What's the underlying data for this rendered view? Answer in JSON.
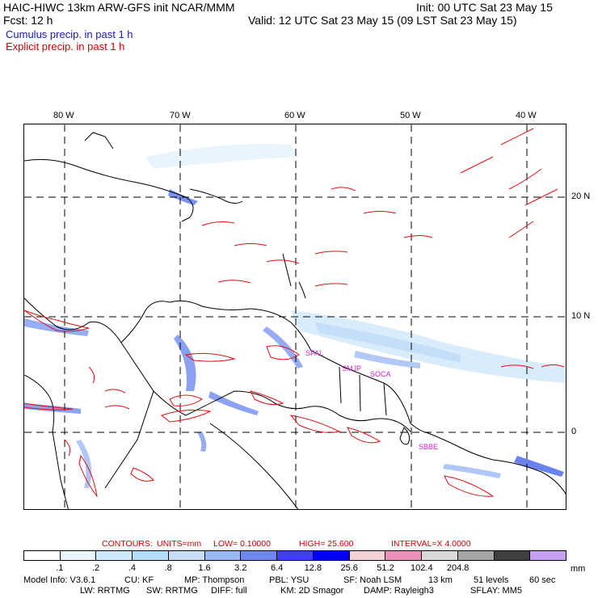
{
  "header": {
    "title_left": "HAIC-HIWC 13km ARW-GFS init   NCAR/MMM",
    "init": "Init: 00 UTC Sat 23 May 15",
    "fcst": "Fcst:    12 h",
    "valid": "Valid: 12 UTC Sat 23 May 15 (09 LST Sat 23 May 15)",
    "legend_cumulus": "Cumulus precip. in past 1 h",
    "legend_explicit": "Explicit precip. in past 1 h"
  },
  "map": {
    "lon_labels": [
      "80 W",
      "70 W",
      "60 W",
      "50 W",
      "40 W"
    ],
    "lat_labels": [
      "20 N",
      "10 N",
      "0"
    ],
    "stations": [
      "SFAL",
      "SMJP",
      "SOCA",
      "SBBE"
    ],
    "colors": {
      "cumulus": "#4b6cf0",
      "explicit": "#e01010",
      "coast": "#000000"
    }
  },
  "contours_info": {
    "label": "CONTOURS:",
    "units": "UNITS=mm",
    "low": "LOW= 0.10000",
    "high": "HIGH=  25.600",
    "interval": "INTERVAL=X  4.0000"
  },
  "colorbar": {
    "colors": [
      "#ffffff",
      "#e8f6ff",
      "#cbe9ff",
      "#b2defb",
      "#c8ddfa",
      "#9ab8f4",
      "#6f88ee",
      "#4040ee",
      "#0000ee",
      "#f3d2d6",
      "#ec8fb8",
      "#d9d9d9",
      "#a5a5a5",
      "#3f3f3f",
      "#c6a0f2"
    ],
    "labels": [
      ".1",
      ".2",
      ".4",
      ".8",
      "1.6",
      "3.2",
      "6.4",
      "12.8",
      "25.6",
      "51.2",
      "102.4",
      "204.8"
    ],
    "unit": "mm"
  },
  "footer": {
    "line1": [
      "Model Info: V3.6.1",
      "CU: KF",
      "MP: Thompson",
      "PBL: YSU",
      "SF: Noah LSM",
      "13 km",
      "51 levels",
      "60 sec"
    ],
    "line2": [
      "LW: RRTMG",
      "SW: RRTMG",
      "DIFF: full",
      "KM: 2D Smagor",
      "DAMP: Rayleigh3",
      "SFLAY: MM5"
    ]
  }
}
